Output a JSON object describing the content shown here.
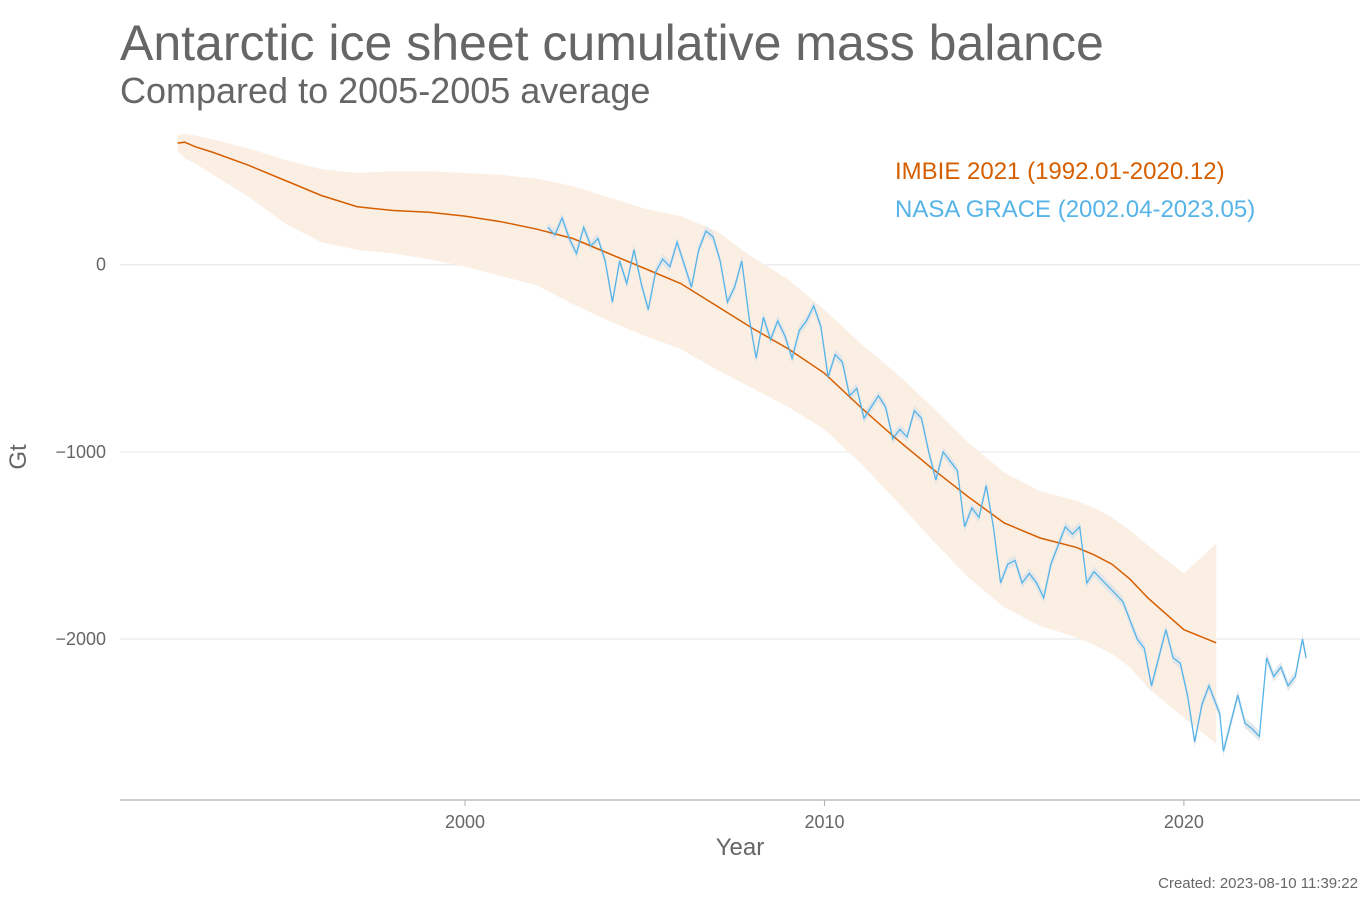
{
  "title": "Antarctic ice sheet cumulative mass balance",
  "subtitle": "Compared to 2005-2005 average",
  "footer": "Created: 2023-08-10 11:39:22",
  "colors": {
    "imbie": "#d55e00",
    "imbie_band": "#fbeee3",
    "grace": "#56b4e9",
    "grace_band": "#dde3e8",
    "text": "#666666",
    "grid": "#e6e6e6"
  },
  "chart_data": {
    "type": "line",
    "title": "Antarctic ice sheet cumulative mass balance",
    "subtitle": "Compared to 2005-2005 average",
    "xlabel": "Year",
    "ylabel": "Gt",
    "xlim": [
      1990.4,
      2024.9
    ],
    "ylim": [
      -2860,
      720
    ],
    "xticks": [
      2000,
      2010,
      2020
    ],
    "yticks": [
      0,
      -1000,
      -2000
    ],
    "ytick_labels": [
      "0",
      "−1000",
      "−2000"
    ],
    "grid": "horizontal",
    "legend_position": "top-right",
    "series": [
      {
        "name": "IMBIE 2021 (1992.01-2020.12)",
        "x": [
          1992.0,
          1992.2,
          1992.5,
          1993.0,
          1994.0,
          1995.0,
          1996.0,
          1997.0,
          1998.0,
          1999.0,
          2000.0,
          2001.0,
          2002.0,
          2003.0,
          2004.0,
          2005.0,
          2006.0,
          2007.0,
          2008.0,
          2009.0,
          2010.0,
          2011.0,
          2012.0,
          2013.0,
          2014.0,
          2015.0,
          2016.0,
          2017.0,
          2017.5,
          2018.0,
          2018.5,
          2019.0,
          2020.0,
          2020.9
        ],
        "y": [
          650,
          655,
          630,
          600,
          530,
          450,
          370,
          310,
          290,
          280,
          260,
          230,
          190,
          140,
          60,
          -20,
          -100,
          -220,
          -340,
          -450,
          -580,
          -760,
          -930,
          -1090,
          -1240,
          -1380,
          -1460,
          -1510,
          -1550,
          -1600,
          -1680,
          -1780,
          -1950,
          -2020
        ],
        "lower": [
          610,
          570,
          540,
          480,
          360,
          220,
          120,
          80,
          60,
          30,
          -10,
          -60,
          -110,
          -210,
          -300,
          -380,
          -450,
          -560,
          -660,
          -760,
          -880,
          -1060,
          -1260,
          -1470,
          -1670,
          -1830,
          -1930,
          -1990,
          -2030,
          -2080,
          -2150,
          -2260,
          -2420,
          -2560
        ],
        "upper": [
          690,
          700,
          690,
          670,
          620,
          560,
          510,
          490,
          500,
          500,
          490,
          480,
          460,
          420,
          360,
          300,
          260,
          180,
          40,
          -80,
          -240,
          -420,
          -580,
          -760,
          -950,
          -1110,
          -1210,
          -1260,
          -1300,
          -1350,
          -1420,
          -1500,
          -1650,
          -1490
        ]
      },
      {
        "name": "NASA GRACE (2002.04-2023.05)",
        "x": [
          2002.3,
          2002.5,
          2002.7,
          2002.9,
          2003.1,
          2003.3,
          2003.5,
          2003.7,
          2003.9,
          2004.1,
          2004.3,
          2004.5,
          2004.7,
          2004.9,
          2005.1,
          2005.3,
          2005.5,
          2005.7,
          2005.9,
          2006.1,
          2006.3,
          2006.5,
          2006.7,
          2006.9,
          2007.1,
          2007.3,
          2007.5,
          2007.7,
          2007.9,
          2008.1,
          2008.3,
          2008.5,
          2008.7,
          2008.9,
          2009.1,
          2009.3,
          2009.5,
          2009.7,
          2009.9,
          2010.1,
          2010.3,
          2010.5,
          2010.7,
          2010.9,
          2011.1,
          2011.3,
          2011.5,
          2011.7,
          2011.9,
          2012.1,
          2012.3,
          2012.5,
          2012.7,
          2012.9,
          2013.1,
          2013.3,
          2013.5,
          2013.7,
          2013.9,
          2014.1,
          2014.3,
          2014.5,
          2014.7,
          2014.9,
          2015.1,
          2015.3,
          2015.5,
          2015.7,
          2015.9,
          2016.1,
          2016.3,
          2016.5,
          2016.7,
          2016.9,
          2017.1,
          2017.3,
          2017.5,
          2017.7,
          2017.9,
          2018.1,
          2018.3,
          2018.5,
          2018.7,
          2018.9,
          2019.1,
          2019.3,
          2019.5,
          2019.7,
          2019.9,
          2020.1,
          2020.3,
          2020.5,
          2020.7,
          2020.9,
          2021.0,
          2021.1,
          2021.3,
          2021.5,
          2021.7,
          2021.9,
          2022.1,
          2022.3,
          2022.5,
          2022.7,
          2022.9,
          2023.1,
          2023.3,
          2023.4
        ],
        "y": [
          200,
          160,
          250,
          140,
          60,
          200,
          100,
          140,
          20,
          -200,
          20,
          -100,
          80,
          -100,
          -240,
          -40,
          30,
          -10,
          120,
          0,
          -120,
          80,
          180,
          150,
          20,
          -200,
          -120,
          20,
          -280,
          -500,
          -280,
          -400,
          -300,
          -380,
          -500,
          -350,
          -300,
          -220,
          -330,
          -600,
          -480,
          -520,
          -700,
          -660,
          -820,
          -760,
          -700,
          -760,
          -930,
          -880,
          -920,
          -780,
          -820,
          -1000,
          -1150,
          -1000,
          -1050,
          -1100,
          -1400,
          -1300,
          -1350,
          -1180,
          -1400,
          -1700,
          -1600,
          -1580,
          -1700,
          -1650,
          -1700,
          -1780,
          -1600,
          -1500,
          -1400,
          -1440,
          -1400,
          -1700,
          -1640,
          -1680,
          -1720,
          -1760,
          -1800,
          -1900,
          -2000,
          -2050,
          -2250,
          -2100,
          -1950,
          -2100,
          -2130,
          -2300,
          -2550,
          -2350,
          -2250,
          -2350,
          -2400,
          -2600,
          -2450,
          -2300,
          -2450,
          -2480,
          -2520,
          -2100,
          -2200,
          -2150,
          -2250,
          -2200,
          -2000,
          -2100
        ]
      }
    ]
  }
}
